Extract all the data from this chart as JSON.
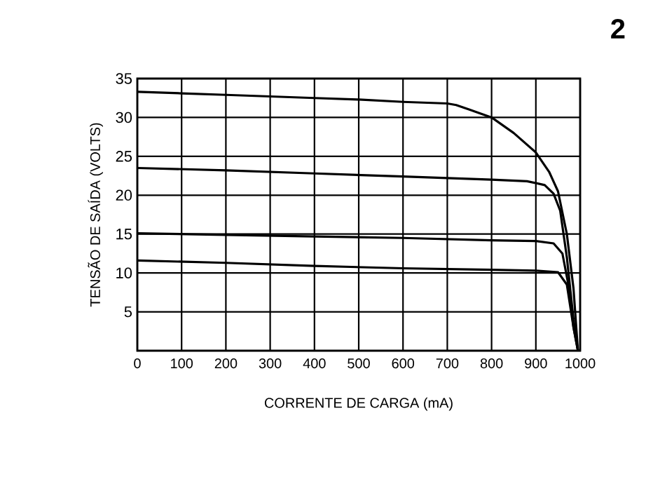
{
  "chart_data": {
    "type": "line",
    "xlabel": "CORRENTE DE CARGA (mA)",
    "ylabel": "TENSÃO DE SAÍDA (VOLTS)",
    "annotations": [
      "2"
    ],
    "xlim": [
      0,
      1000
    ],
    "ylim": [
      0,
      35
    ],
    "xticks": [
      0,
      100,
      200,
      300,
      400,
      500,
      600,
      700,
      800,
      900,
      1000
    ],
    "yticks": [
      5,
      10,
      15,
      20,
      25,
      30,
      35
    ],
    "grid": true,
    "marker": "none",
    "line_style": "solid",
    "series": [
      {
        "color": "#000000",
        "x": [
          0,
          100,
          200,
          300,
          400,
          500,
          600,
          700,
          720,
          750,
          800,
          850,
          900,
          930,
          950,
          970,
          985,
          995
        ],
        "values": [
          33.3,
          33.1,
          32.9,
          32.7,
          32.5,
          32.3,
          32.0,
          31.8,
          31.6,
          31.0,
          30.0,
          28.0,
          25.5,
          23.0,
          20.5,
          15.0,
          8.0,
          0
        ]
      },
      {
        "color": "#000000",
        "x": [
          0,
          200,
          400,
          600,
          800,
          880,
          920,
          940,
          955,
          970,
          985,
          995
        ],
        "values": [
          23.5,
          23.2,
          22.8,
          22.4,
          22.0,
          21.8,
          21.3,
          20.2,
          18.0,
          12.0,
          4.0,
          0
        ]
      },
      {
        "color": "#000000",
        "x": [
          0,
          200,
          400,
          600,
          800,
          900,
          940,
          960,
          975,
          985,
          995
        ],
        "values": [
          15.1,
          14.9,
          14.7,
          14.5,
          14.2,
          14.1,
          13.8,
          12.5,
          8.0,
          3.0,
          0
        ]
      },
      {
        "color": "#000000",
        "x": [
          0,
          200,
          400,
          600,
          800,
          900,
          950,
          970,
          985,
          995
        ],
        "values": [
          11.6,
          11.3,
          10.9,
          10.6,
          10.4,
          10.3,
          10.1,
          8.5,
          3.0,
          0
        ]
      }
    ]
  }
}
